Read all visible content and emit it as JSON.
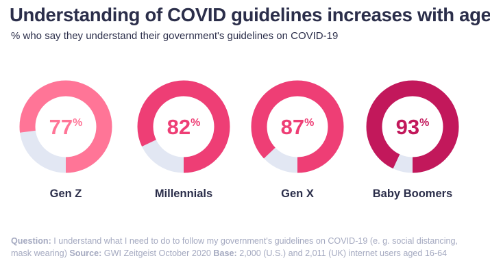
{
  "chart_data": {
    "type": "donut",
    "title": "Understanding of COVID guidelines increases with age",
    "subtitle": "% who say they understand their government's guidelines on COVID-19",
    "unit": "%",
    "categories": [
      "Gen Z",
      "Millennials",
      "Gen X",
      "Baby Boomers"
    ],
    "values": [
      77,
      82,
      87,
      93
    ],
    "colors": [
      "#ff7597",
      "#ee3e75",
      "#ee3e75",
      "#c2185b"
    ],
    "track_color": "#e2e7f3"
  },
  "footnote": {
    "question_label": "Question:",
    "question_text": "I understand what I need to do to follow my government's guidelines on COVID-19 (e. g. social distancing, mask wearing)",
    "source_label": "Source:",
    "source_text": "GWI Zeitgeist October 2020",
    "base_label": "Base:",
    "base_text": "2,000 (U.S.) and 2,011 (UK) internet users aged 16-64"
  }
}
